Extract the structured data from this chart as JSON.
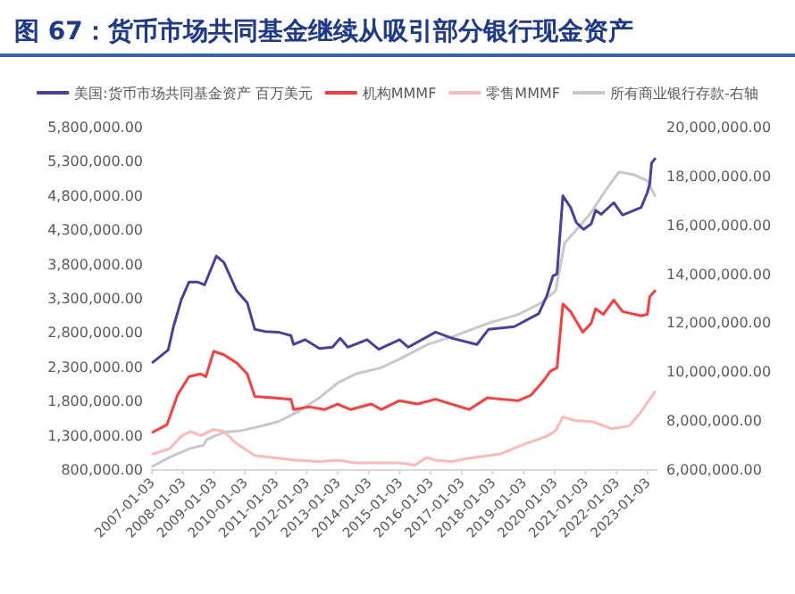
{
  "chart_data": {
    "type": "line",
    "title": "图 67：货币市场共同基金继续从吸引部分银行现金资产",
    "xlim": [
      "2007-01-03",
      "2023-04-30"
    ],
    "xticks": [
      "2007-01-03",
      "2008-01-03",
      "2009-01-03",
      "2010-01-03",
      "2011-01-03",
      "2012-01-03",
      "2013-01-03",
      "2014-01-03",
      "2015-01-03",
      "2016-01-03",
      "2017-01-03",
      "2018-01-03",
      "2019-01-03",
      "2020-01-03",
      "2021-01-03",
      "2022-01-03",
      "2023-01-03"
    ],
    "ylim": [
      800000,
      5800000
    ],
    "yticks": [
      {
        "value": 800000,
        "label": "800,000.00"
      },
      {
        "value": 1300000,
        "label": "1,300,000.00"
      },
      {
        "value": 1800000,
        "label": "1,800,000.00"
      },
      {
        "value": 2300000,
        "label": "2,300,000.00"
      },
      {
        "value": 2800000,
        "label": "2,800,000.00"
      },
      {
        "value": 3300000,
        "label": "3,300,000.00"
      },
      {
        "value": 3800000,
        "label": "3,800,000.00"
      },
      {
        "value": 4300000,
        "label": "4,300,000.00"
      },
      {
        "value": 4800000,
        "label": "4,800,000.00"
      },
      {
        "value": 5300000,
        "label": "5,300,000.00"
      },
      {
        "value": 5800000,
        "label": "5,800,000.00"
      }
    ],
    "y2lim": [
      6000000,
      20000000
    ],
    "y2ticks": [
      {
        "value": 6000000,
        "label": "6,000,000.00"
      },
      {
        "value": 8000000,
        "label": "8,000,000.00"
      },
      {
        "value": 10000000,
        "label": "10,000,000.00"
      },
      {
        "value": 12000000,
        "label": "12,000,000.00"
      },
      {
        "value": 14000000,
        "label": "14,000,000.00"
      },
      {
        "value": 16000000,
        "label": "16,000,000.00"
      },
      {
        "value": 18000000,
        "label": "18,000,000.00"
      },
      {
        "value": 20000000,
        "label": "20,000,000.00"
      }
    ],
    "legend": "top",
    "series": [
      {
        "name": "美国:货币市场共同基金资产  百万美元",
        "color": "#4b3f9e",
        "x": [
          "2007-01-15",
          "2007-07-15",
          "2007-09-15",
          "2007-12-15",
          "2008-03-15",
          "2008-07-01",
          "2008-09-15",
          "2008-10-15",
          "2009-02-01",
          "2009-05-01",
          "2009-10-01",
          "2010-02-01",
          "2010-05-01",
          "2010-09-01",
          "2011-02-01",
          "2011-07-01",
          "2011-08-01",
          "2011-12-15",
          "2012-06-01",
          "2012-11-01",
          "2013-02-01",
          "2013-05-01",
          "2013-12-15",
          "2014-05-01",
          "2015-01-01",
          "2015-04-15",
          "2016-03-01",
          "2016-09-15",
          "2017-07-01",
          "2017-11-15",
          "2018-09-15",
          "2019-07-01",
          "2019-10-01",
          "2019-12-15",
          "2020-02-01",
          "2020-04-10",
          "2020-07-10",
          "2020-09-15",
          "2020-12-10",
          "2021-03-10",
          "2021-05-01",
          "2021-07-05",
          "2021-12-01",
          "2022-03-15",
          "2022-10-20",
          "2023-01-01",
          "2023-01-30",
          "2023-02-20",
          "2023-03-31"
        ],
        "values": [
          2360000,
          2540000,
          2880000,
          3270000,
          3530000,
          3530000,
          3490000,
          3580000,
          3910000,
          3820000,
          3400000,
          3230000,
          2840000,
          2810000,
          2800000,
          2750000,
          2620000,
          2690000,
          2560000,
          2580000,
          2710000,
          2580000,
          2690000,
          2550000,
          2690000,
          2580000,
          2800000,
          2710000,
          2620000,
          2840000,
          2880000,
          3070000,
          3320000,
          3620000,
          3650000,
          4790000,
          4620000,
          4400000,
          4300000,
          4380000,
          4580000,
          4520000,
          4690000,
          4510000,
          4620000,
          4840000,
          4970000,
          5270000,
          5330000
        ]
      },
      {
        "name": "机构MMMF",
        "color": "#ff3b3b",
        "x": [
          "2007-01-15",
          "2007-07-01",
          "2007-11-01",
          "2008-03-15",
          "2008-08-01",
          "2008-10-01",
          "2009-01-01",
          "2009-05-01",
          "2009-10-01",
          "2010-02-01",
          "2010-05-01",
          "2010-12-01",
          "2011-07-01",
          "2011-08-01",
          "2012-02-01",
          "2012-08-01",
          "2013-01-01",
          "2013-06-01",
          "2014-02-01",
          "2014-06-01",
          "2015-01-01",
          "2015-08-01",
          "2016-03-01",
          "2017-04-01",
          "2017-11-01",
          "2018-11-01",
          "2019-04-01",
          "2019-09-01",
          "2019-11-15",
          "2020-02-01",
          "2020-04-10",
          "2020-07-10",
          "2020-12-01",
          "2021-03-10",
          "2021-05-01",
          "2021-08-01",
          "2021-12-01",
          "2022-03-15",
          "2022-10-20",
          "2023-01-01",
          "2023-01-30",
          "2023-03-31"
        ],
        "values": [
          1340000,
          1450000,
          1880000,
          2150000,
          2190000,
          2150000,
          2520000,
          2470000,
          2350000,
          2190000,
          1860000,
          1840000,
          1820000,
          1670000,
          1710000,
          1670000,
          1750000,
          1670000,
          1750000,
          1670000,
          1800000,
          1750000,
          1820000,
          1670000,
          1840000,
          1800000,
          1880000,
          2100000,
          2230000,
          2280000,
          3210000,
          3100000,
          2800000,
          2930000,
          3140000,
          3060000,
          3270000,
          3100000,
          3040000,
          3060000,
          3320000,
          3400000
        ]
      },
      {
        "name": "零售MMMF",
        "color": "#ffb8b8",
        "x": [
          "2007-01-15",
          "2007-08-01",
          "2007-12-15",
          "2008-04-01",
          "2008-08-01",
          "2009-01-01",
          "2009-05-01",
          "2009-10-01",
          "2010-05-01",
          "2011-02-01",
          "2011-09-01",
          "2012-06-01",
          "2013-01-01",
          "2013-08-01",
          "2014-07-01",
          "2015-01-01",
          "2015-07-01",
          "2015-11-15",
          "2016-03-01",
          "2016-09-01",
          "2017-04-01",
          "2018-04-01",
          "2019-01-01",
          "2019-10-01",
          "2020-01-15",
          "2020-04-10",
          "2020-09-01",
          "2021-04-01",
          "2021-11-01",
          "2022-06-01",
          "2022-10-15",
          "2023-03-31"
        ],
        "values": [
          1020000,
          1100000,
          1280000,
          1350000,
          1290000,
          1380000,
          1350000,
          1170000,
          1000000,
          960000,
          930000,
          910000,
          930000,
          890000,
          890000,
          890000,
          860000,
          970000,
          930000,
          910000,
          960000,
          1020000,
          1160000,
          1280000,
          1360000,
          1560000,
          1510000,
          1490000,
          1390000,
          1430000,
          1630000,
          1930000
        ]
      },
      {
        "name": "所有商业银行存款-右轴",
        "color": "#c8c8c8",
        "axis": "y2",
        "x": [
          "2007-01-15",
          "2007-08-01",
          "2008-04-01",
          "2008-09-01",
          "2008-10-15",
          "2009-05-01",
          "2009-12-01",
          "2010-07-01",
          "2011-02-01",
          "2011-09-01",
          "2012-06-01",
          "2013-01-01",
          "2013-08-01",
          "2014-06-01",
          "2015-01-01",
          "2015-12-01",
          "2016-11-01",
          "2017-11-01",
          "2018-11-01",
          "2019-08-01",
          "2020-01-15",
          "2020-05-01",
          "2020-09-01",
          "2021-03-01",
          "2021-09-01",
          "2022-02-01",
          "2022-08-01",
          "2023-01-01",
          "2023-03-31"
        ],
        "values": [
          6120000,
          6490000,
          6850000,
          6970000,
          7220000,
          7510000,
          7580000,
          7750000,
          7940000,
          8310000,
          8920000,
          9520000,
          9890000,
          10150000,
          10500000,
          11100000,
          11470000,
          11950000,
          12320000,
          12800000,
          13290000,
          15240000,
          15720000,
          16450000,
          17420000,
          18150000,
          18030000,
          17790000,
          17180000
        ]
      }
    ]
  }
}
